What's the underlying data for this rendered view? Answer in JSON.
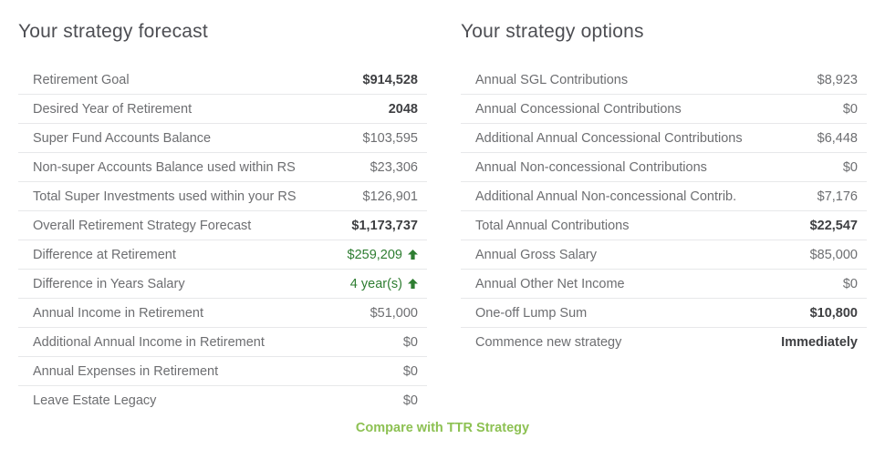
{
  "colors": {
    "title": "#4d4e53",
    "row_text": "#6d6e71",
    "bold_value": "#3e3f42",
    "positive_green": "#2e7d31",
    "link_green": "#8dc153",
    "divider": "#e7e8ea"
  },
  "forecast": {
    "title": "Your strategy forecast",
    "rows": [
      {
        "label": "Retirement Goal",
        "value": "$914,528",
        "bold": true
      },
      {
        "label": "Desired Year of Retirement",
        "value": "2048",
        "bold": true
      },
      {
        "label": "Super Fund Accounts Balance",
        "value": "$103,595"
      },
      {
        "label": "Non-super Accounts Balance used within RS",
        "value": "$23,306"
      },
      {
        "label": "Total Super Investments used within your RS",
        "value": "$126,901"
      },
      {
        "label": "Overall Retirement Strategy Forecast",
        "value": "$1,173,737",
        "bold": true
      },
      {
        "label": "Difference at Retirement",
        "value": "$259,209",
        "green": true,
        "arrow": "up"
      },
      {
        "label": "Difference in Years Salary",
        "value": "4 year(s)",
        "green": true,
        "arrow": "up"
      },
      {
        "label": "Annual Income in Retirement",
        "value": "$51,000"
      },
      {
        "label": "Additional Annual Income in Retirement",
        "value": "$0"
      },
      {
        "label": "Annual Expenses in Retirement",
        "value": "$0"
      },
      {
        "label": "Leave Estate Legacy",
        "value": "$0"
      }
    ]
  },
  "options": {
    "title": "Your strategy options",
    "rows": [
      {
        "label": "Annual SGL Contributions",
        "value": "$8,923"
      },
      {
        "label": "Annual Concessional Contributions",
        "value": "$0"
      },
      {
        "label": "Additional Annual Concessional Contributions",
        "value": "$6,448"
      },
      {
        "label": "Annual Non-concessional Contributions",
        "value": "$0"
      },
      {
        "label": "Additional Annual Non-concessional Contrib.",
        "value": "$7,176"
      },
      {
        "label": "Total Annual Contributions",
        "value": "$22,547",
        "bold": true
      },
      {
        "label": "Annual Gross Salary",
        "value": "$85,000"
      },
      {
        "label": "Annual Other Net Income",
        "value": "$0"
      },
      {
        "label": "One-off Lump Sum",
        "value": "$10,800",
        "bold": true
      },
      {
        "label": "Commence new strategy",
        "value": "Immediately",
        "bold": true
      }
    ]
  },
  "footer": {
    "compare_link": "Compare with TTR Strategy"
  }
}
